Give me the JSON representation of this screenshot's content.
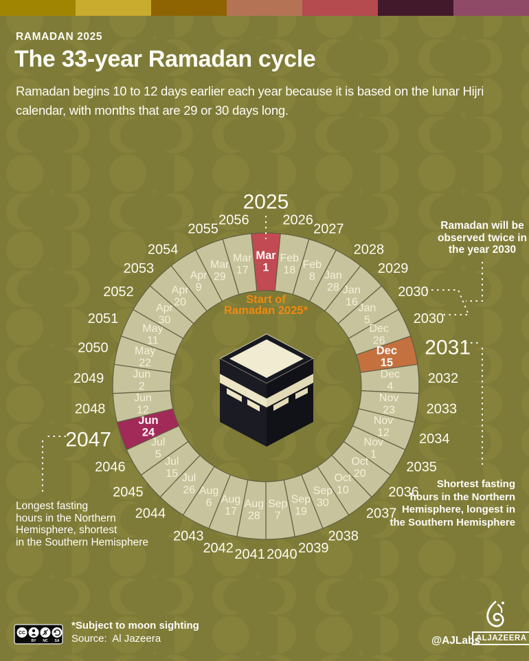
{
  "top_bar": {
    "colors": [
      "#a08503",
      "#c9ab2d",
      "#8e6403",
      "#b57356",
      "#b54a4f",
      "#41192b",
      "#8f4a67"
    ]
  },
  "header": {
    "eyebrow": "RAMADAN 2025",
    "title": "The 33-year Ramadan cycle",
    "subtitle": "Ramadan begins 10 to 12 days earlier each year because it is based on the lunar Hijri calendar, with months that are 29 or 30 days long."
  },
  "wheel": {
    "center_label": {
      "line1": "Start of",
      "line2": "Ramadan 2025*",
      "color": "#f08a0e"
    },
    "style": {
      "segment_fill": "#c7c39c",
      "segment_border": "#5f5e41",
      "date_color": "#f6f3dd",
      "year_color": "#fcfbf1"
    },
    "highlight_colors": {
      "red": "#c24a52",
      "orange": "#c4713f",
      "magenta": "#a22a59"
    },
    "segments": [
      {
        "year": "2025",
        "month": "Mar",
        "day": "1",
        "highlight": "red",
        "big": true
      },
      {
        "year": "2026",
        "month": "Feb",
        "day": "18"
      },
      {
        "year": "2027",
        "month": "Feb",
        "day": "8"
      },
      {
        "year": "2028",
        "month": "Jan",
        "day": "28"
      },
      {
        "year": "2029",
        "month": "Jan",
        "day": "16"
      },
      {
        "year": "2030",
        "month": "Jan",
        "day": "5"
      },
      {
        "year": "2030",
        "month": "Dec",
        "day": "26"
      },
      {
        "year": "2031",
        "month": "Dec",
        "day": "15",
        "highlight": "orange",
        "big": true
      },
      {
        "year": "2032",
        "month": "Dec",
        "day": "4"
      },
      {
        "year": "2033",
        "month": "Nov",
        "day": "23"
      },
      {
        "year": "2034",
        "month": "Nov",
        "day": "12"
      },
      {
        "year": "2035",
        "month": "Nov",
        "day": "1"
      },
      {
        "year": "2036",
        "month": "Oct",
        "day": "20"
      },
      {
        "year": "2037",
        "month": "Oct",
        "day": "10"
      },
      {
        "year": "2038",
        "month": "Sep",
        "day": "30"
      },
      {
        "year": "2039",
        "month": "Sep",
        "day": "19"
      },
      {
        "year": "2040",
        "month": "Sep",
        "day": "7"
      },
      {
        "year": "2041",
        "month": "Aug",
        "day": "28"
      },
      {
        "year": "2042",
        "month": "Aug",
        "day": "17"
      },
      {
        "year": "2043",
        "month": "Aug",
        "day": "6"
      },
      {
        "year": "2044",
        "month": "Jul",
        "day": "26"
      },
      {
        "year": "2045",
        "month": "Jul",
        "day": "15"
      },
      {
        "year": "2046",
        "month": "Jul",
        "day": "5"
      },
      {
        "year": "2047",
        "month": "Jun",
        "day": "24",
        "highlight": "magenta",
        "big": true
      },
      {
        "year": "2048",
        "month": "Jun",
        "day": "12"
      },
      {
        "year": "2049",
        "month": "Jun",
        "day": "2"
      },
      {
        "year": "2050",
        "month": "May",
        "day": "22"
      },
      {
        "year": "2051",
        "month": "May",
        "day": "11"
      },
      {
        "year": "2052",
        "month": "Apr",
        "day": "30"
      },
      {
        "year": "2053",
        "month": "Apr",
        "day": "20"
      },
      {
        "year": "2054",
        "month": "Apr",
        "day": "9"
      },
      {
        "year": "2055",
        "month": "Mar",
        "day": "29"
      },
      {
        "year": "2056",
        "month": "Mar",
        "day": "17"
      }
    ]
  },
  "annotations": {
    "twice_2030": {
      "lines": [
        "Ramadan will be",
        "observed twice in",
        "the year 2030"
      ]
    },
    "shortest": {
      "lines": [
        "Shortest fasting",
        "hours in the Northern",
        "Hemisphere, longest in",
        "the Southern Hemisphere"
      ]
    },
    "longest": {
      "lines": [
        "Longest fasting",
        "hours in the Northern",
        "Hemisphere, shortest",
        "in the Southern Hemisphere"
      ]
    }
  },
  "footer": {
    "note": "*Subject to moon sighting",
    "source": "Source:  Al Jazeera",
    "credit": "@AJLabs",
    "logo_text": "ALJAZEERA",
    "cc_labels": [
      "BY",
      "NC",
      "SA"
    ]
  }
}
